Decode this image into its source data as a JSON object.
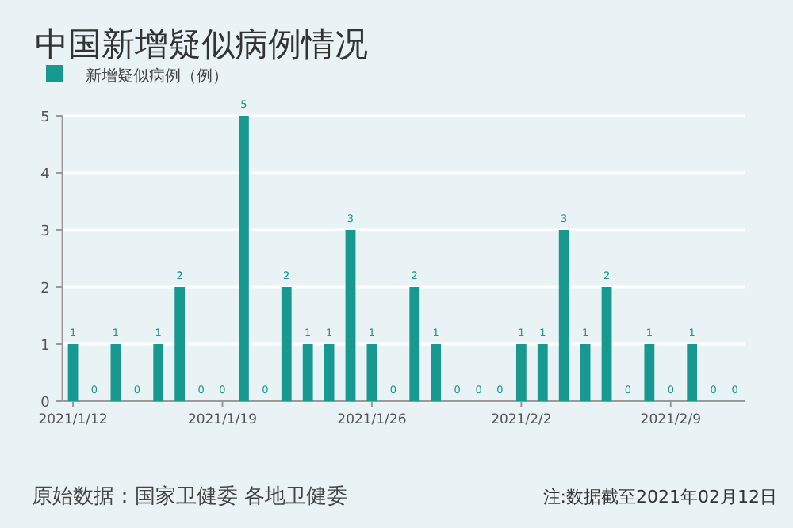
{
  "chart_data": {
    "type": "bar",
    "title": "中国新增疑似病例情况",
    "categories": [
      "2021/1/12",
      null,
      null,
      null,
      null,
      null,
      null,
      "2021/1/19",
      null,
      null,
      null,
      null,
      null,
      null,
      "2021/1/26",
      null,
      null,
      null,
      null,
      null,
      null,
      "2021/2/2",
      null,
      null,
      null,
      null,
      null,
      null,
      "2021/2/9",
      null,
      null,
      null
    ],
    "series": [
      {
        "name": "新增疑似病例（例）",
        "color": "#17998f",
        "values": [
          1,
          0,
          1,
          0,
          1,
          2,
          0,
          0,
          5,
          0,
          2,
          1,
          1,
          3,
          1,
          0,
          2,
          1,
          0,
          0,
          0,
          1,
          1,
          3,
          1,
          2,
          0,
          1,
          0,
          1,
          0,
          0
        ]
      }
    ],
    "ylim": [
      0,
      5
    ],
    "yticks": [
      0,
      1,
      2,
      3,
      4,
      5
    ],
    "grid": "y",
    "legend": "top left",
    "data_labels": true,
    "annotations": [
      "原始数据：国家卫健委 各地卫健委",
      "注:数据截至2021年02月12日"
    ]
  }
}
